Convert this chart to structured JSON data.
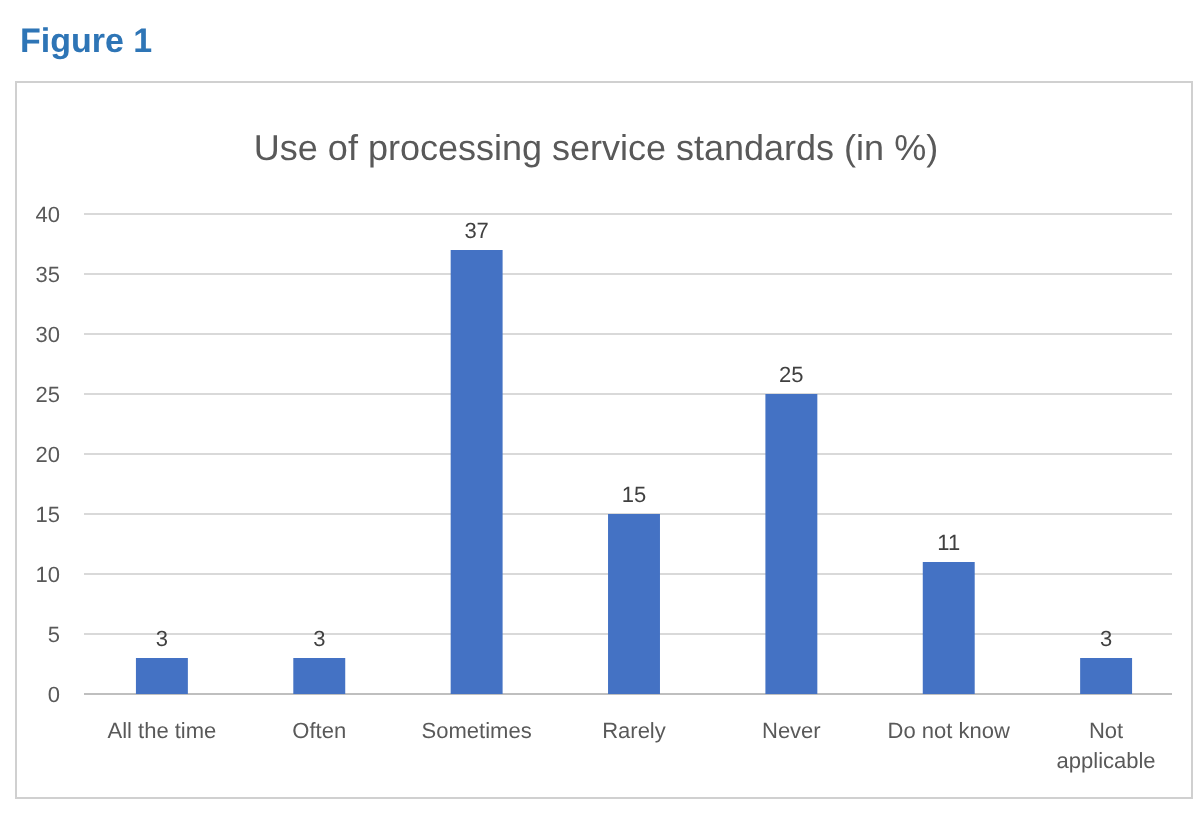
{
  "chart_data": {
    "type": "bar",
    "title": "Use of processing service standards (in %)",
    "annotations": [
      "Figure 1"
    ],
    "categories": [
      "All the time",
      "Often",
      "Sometimes",
      "Rarely",
      "Never",
      "Do not know",
      "Not applicable"
    ],
    "values": [
      3,
      3,
      37,
      15,
      25,
      11,
      3
    ],
    "color": "#4472c4",
    "ylim": [
      0,
      40
    ],
    "yticks": [
      0,
      5,
      10,
      15,
      20,
      25,
      30,
      35,
      40
    ],
    "grid": "y",
    "data_labels": true
  }
}
